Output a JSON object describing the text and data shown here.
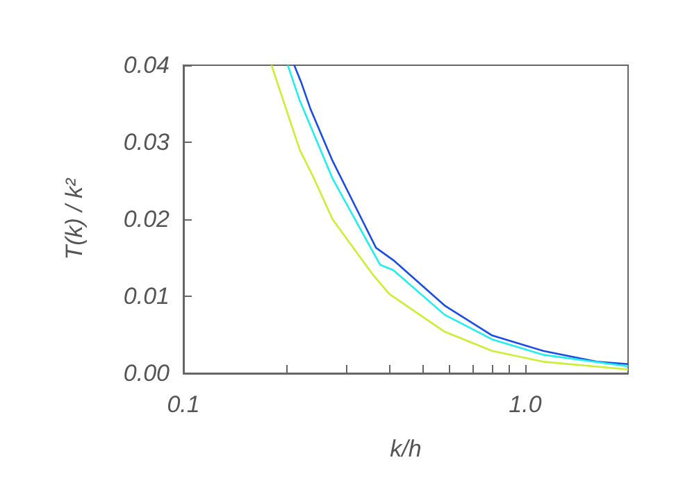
{
  "chart_data": {
    "type": "line",
    "xlabel": "k/h",
    "ylabel": "T(k) / k²",
    "log": "x",
    "xlim": [
      0.1,
      2
    ],
    "ylim": [
      0,
      0.04
    ],
    "xticks": [
      {
        "value": 0.1,
        "label": "0.1"
      },
      {
        "value": 0.2,
        "label": null
      },
      {
        "value": 0.3,
        "label": null
      },
      {
        "value": 0.4,
        "label": null
      },
      {
        "value": 0.5,
        "label": null
      },
      {
        "value": 0.6,
        "label": null
      },
      {
        "value": 0.7,
        "label": null
      },
      {
        "value": 0.8,
        "label": null
      },
      {
        "value": 0.9,
        "label": null
      },
      {
        "value": 1,
        "label": "1.0"
      }
    ],
    "yticks": [
      {
        "value": 0,
        "label": "0.00"
      },
      0.01,
      0.02,
      0.03,
      0.04
    ],
    "grid": false,
    "marker": "none",
    "line_style": "solid",
    "series": [
      {
        "color": "#1a4ce6",
        "x": [
          0.211,
          0.221,
          0.235,
          0.273,
          0.366,
          0.411,
          0.581,
          0.801,
          1.13,
          1.62,
          2
        ],
        "values": [
          0.04,
          0.0378,
          0.0344,
          0.0276,
          0.0163,
          0.0147,
          0.0088,
          0.0049,
          0.0029,
          0.0015,
          0.0012
        ]
      },
      {
        "color": "#22eeee",
        "x": [
          0.202,
          0.219,
          0.273,
          0.376,
          0.411,
          0.581,
          0.801,
          1.13,
          2
        ],
        "values": [
          0.04,
          0.0354,
          0.0253,
          0.0141,
          0.0134,
          0.0076,
          0.0044,
          0.0024,
          0.0009
        ]
      },
      {
        "color": "#ccee33",
        "x": [
          0.181,
          0.219,
          0.241,
          0.273,
          0.357,
          0.4,
          0.581,
          0.801,
          1.13,
          2
        ],
        "values": [
          0.04,
          0.029,
          0.0253,
          0.02,
          0.0129,
          0.0103,
          0.0054,
          0.0029,
          0.0015,
          0.0005
        ]
      }
    ]
  }
}
